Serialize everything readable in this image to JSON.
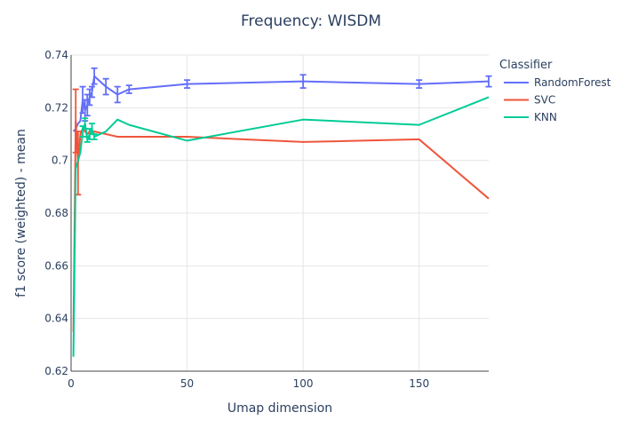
{
  "chart_data": {
    "type": "line",
    "title": "Frequency: WISDM",
    "xlabel": "Umap dimension",
    "ylabel": "f1 score (weighted) - mean",
    "xlim": [
      0,
      180
    ],
    "ylim": [
      0.62,
      0.74
    ],
    "xticks": [
      0,
      50,
      100,
      150
    ],
    "xtick_labels": [
      "0",
      "50",
      "100",
      "150"
    ],
    "yticks": [
      0.62,
      0.64,
      0.66,
      0.68,
      0.7,
      0.72,
      0.74
    ],
    "ytick_labels": [
      "0.62",
      "0.64",
      "0.66",
      "0.68",
      "0.7",
      "0.72",
      "0.74"
    ],
    "legend_title": "Classifier",
    "legend_position": "right",
    "series": [
      {
        "name": "RandomForest",
        "color": "#636efa",
        "x": [
          1,
          2,
          3,
          4,
          5,
          6,
          7,
          8,
          9,
          10,
          15,
          20,
          25,
          50,
          100,
          150,
          180
        ],
        "y": [
          0.711,
          0.712,
          0.714,
          0.715,
          0.723,
          0.719,
          0.721,
          0.724,
          0.726,
          0.732,
          0.728,
          0.725,
          0.727,
          0.729,
          0.73,
          0.729,
          0.73
        ],
        "err": [
          0.0,
          0.0,
          0.0,
          0.0,
          0.005,
          0.004,
          0.004,
          0.003,
          0.002,
          0.003,
          0.003,
          0.003,
          0.0015,
          0.0015,
          0.0025,
          0.0015,
          0.002
        ]
      },
      {
        "name": "SVC",
        "color": "#ef553b",
        "x": [
          1,
          2,
          3,
          4,
          5,
          6,
          7,
          8,
          9,
          10,
          15,
          20,
          25,
          50,
          100,
          150,
          180
        ],
        "y": [
          0.635,
          0.715,
          0.699,
          0.71,
          0.712,
          0.711,
          0.71,
          0.711,
          0.71,
          0.711,
          0.71,
          0.709,
          0.709,
          0.709,
          0.707,
          0.708,
          0.6855
        ],
        "err": [
          0.0,
          0.012,
          0.012,
          0.0,
          0.0,
          0.0,
          0.0,
          0.0,
          0.0,
          0.0,
          0.0,
          0.0,
          0.0,
          0.0,
          0.0,
          0.0,
          0.0
        ]
      },
      {
        "name": "KNN",
        "color": "#00cc96",
        "x": [
          1,
          2,
          3,
          4,
          5,
          6,
          7,
          8,
          9,
          10,
          15,
          20,
          25,
          50,
          100,
          150,
          180
        ],
        "y": [
          0.6255,
          0.697,
          0.7,
          0.703,
          0.711,
          0.714,
          0.708,
          0.71,
          0.712,
          0.709,
          0.711,
          0.7155,
          0.7135,
          0.7075,
          0.7155,
          0.7135,
          0.724
        ],
        "err": [
          0.0,
          0.0,
          0.0,
          0.0,
          0.002,
          0.002,
          0.001,
          0.002,
          0.002,
          0.001,
          0.0,
          0.0,
          0.0,
          0.0,
          0.0,
          0.0,
          0.0
        ]
      }
    ]
  }
}
